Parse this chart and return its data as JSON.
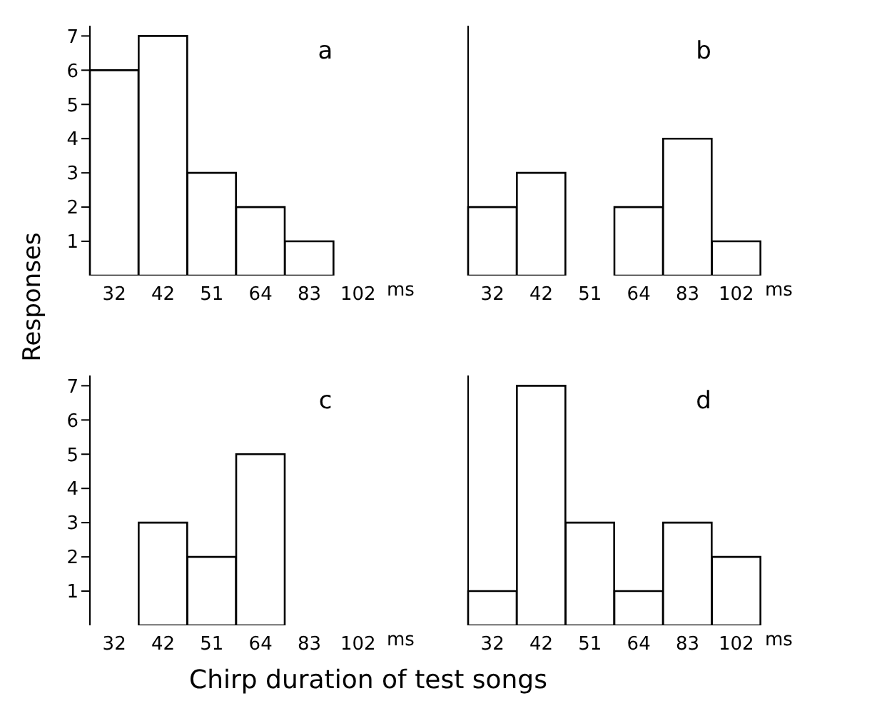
{
  "chart_data": [
    {
      "type": "bar",
      "title": "a",
      "ylabel": "Responses",
      "categories": [
        "32",
        "42",
        "51",
        "64",
        "83",
        "102"
      ],
      "values": [
        6,
        7,
        3,
        2,
        1,
        0
      ],
      "color": "#ffffff",
      "ylim": [
        0,
        7.3
      ],
      "yticks": [
        1,
        2,
        3,
        4,
        5,
        6,
        7
      ],
      "annotations": [
        "ms"
      ]
    },
    {
      "type": "bar",
      "title": "b",
      "categories": [
        "32",
        "42",
        "51",
        "64",
        "83",
        "102"
      ],
      "values": [
        2,
        3,
        0,
        2,
        4,
        1
      ],
      "color": "#ffffff",
      "ylim": [
        0,
        7.3
      ],
      "yticks": [
        1,
        2,
        3,
        4,
        5,
        6,
        7
      ],
      "tick_labels": "x",
      "annotations": [
        "ms"
      ]
    },
    {
      "type": "bar",
      "title": "c",
      "categories": [
        "32",
        "42",
        "51",
        "64",
        "83",
        "102"
      ],
      "values": [
        0,
        3,
        2,
        5,
        0,
        0
      ],
      "color": "#ffffff",
      "ylim": [
        0,
        7.3
      ],
      "yticks": [
        1,
        2,
        3,
        4,
        5,
        6,
        7
      ],
      "annotations": [
        "ms"
      ]
    },
    {
      "type": "bar",
      "title": "d",
      "xlabel": "Chirp duration of test songs",
      "categories": [
        "32",
        "42",
        "51",
        "64",
        "83",
        "102"
      ],
      "values": [
        1,
        7,
        3,
        1,
        3,
        2
      ],
      "color": "#ffffff",
      "ylim": [
        0,
        7.3
      ],
      "yticks": [
        1,
        2,
        3,
        4,
        5,
        6,
        7
      ],
      "tick_labels": "x",
      "annotations": [
        "ms"
      ]
    }
  ]
}
